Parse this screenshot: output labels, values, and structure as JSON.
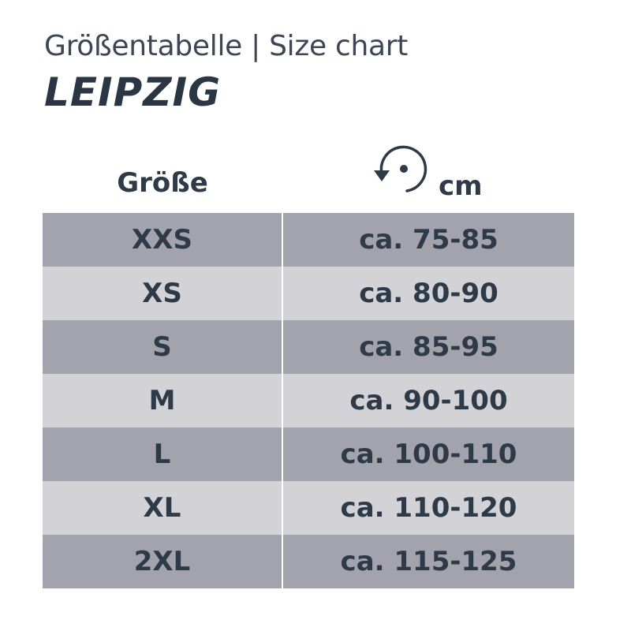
{
  "header": {
    "subtitle": "Größentabelle | Size chart",
    "title": "LEIPZIG"
  },
  "table": {
    "size_header": "Größe",
    "measure_header": "cm",
    "measure_icon": "circumference-icon",
    "rows": [
      {
        "size": "XXS",
        "range": "ca. 75-85"
      },
      {
        "size": "XS",
        "range": "ca. 80-90"
      },
      {
        "size": "S",
        "range": "ca. 85-95"
      },
      {
        "size": "M",
        "range": "ca. 90-100"
      },
      {
        "size": "L",
        "range": "ca. 100-110"
      },
      {
        "size": "XL",
        "range": "ca. 110-120"
      },
      {
        "size": "2XL",
        "range": "ca. 115-125"
      }
    ]
  },
  "colors": {
    "text": "#2e3a48",
    "row_dark": "#a3a3ad",
    "row_light": "#d2d2d7"
  }
}
